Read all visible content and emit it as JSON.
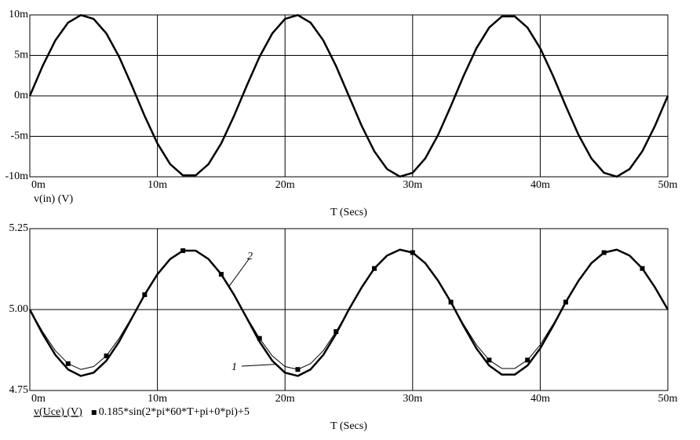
{
  "chart_data": [
    {
      "type": "line",
      "xlabel": "T (Secs)",
      "x": [
        0,
        0.001,
        0.002,
        0.003,
        0.004,
        0.005,
        0.006,
        0.007,
        0.008,
        0.009,
        0.01,
        0.011,
        0.012,
        0.013,
        0.014,
        0.015,
        0.016,
        0.017,
        0.018,
        0.019,
        0.02,
        0.021,
        0.022,
        0.023,
        0.024,
        0.025,
        0.026,
        0.027,
        0.028,
        0.029,
        0.03,
        0.031,
        0.032,
        0.033,
        0.034,
        0.035,
        0.036,
        0.037,
        0.038,
        0.039,
        0.04,
        0.041,
        0.042,
        0.043,
        0.044,
        0.045,
        0.046,
        0.047,
        0.048,
        0.049,
        0.05
      ],
      "series": [
        {
          "name": "v(in) (V)",
          "color": "#000000",
          "width": 2.5,
          "values": [
            0,
            0.00368,
            0.00685,
            0.00905,
            0.00998,
            0.00951,
            0.00771,
            0.00482,
            0.00125,
            -0.00249,
            -0.00588,
            -0.00844,
            -0.00982,
            -0.00982,
            -0.00844,
            -0.00588,
            -0.00249,
            0.00125,
            0.00482,
            0.00771,
            0.00951,
            0.00998,
            0.00905,
            0.00685,
            0.00368,
            0,
            -0.00368,
            -0.00685,
            -0.00905,
            -0.00998,
            -0.00951,
            -0.00771,
            -0.00482,
            -0.00125,
            0.00249,
            0.00588,
            0.00844,
            0.00982,
            0.00982,
            0.00844,
            0.00588,
            0.00249,
            -0.00125,
            -0.00482,
            -0.00771,
            -0.00951,
            -0.00998,
            -0.00905,
            -0.00685,
            -0.00368,
            0
          ]
        }
      ],
      "xlim": [
        0,
        0.05
      ],
      "xticks": [
        {
          "value": 0,
          "label": "0m"
        },
        {
          "value": 0.01,
          "label": "10m"
        },
        {
          "value": 0.02,
          "label": "20m"
        },
        {
          "value": 0.03,
          "label": "30m"
        },
        {
          "value": 0.04,
          "label": "40m"
        },
        {
          "value": 0.05,
          "label": "50m"
        }
      ],
      "ylim": [
        -0.01,
        0.01
      ],
      "yticks": [
        {
          "value": -0.01,
          "label": "-10m"
        },
        {
          "value": -0.005,
          "label": "-5m"
        },
        {
          "value": 0,
          "label": "0m"
        },
        {
          "value": 0.005,
          "label": "5m"
        },
        {
          "value": 0.01,
          "label": "10m"
        }
      ],
      "grid": true
    },
    {
      "type": "line",
      "xlabel": "T (Secs)",
      "x": [
        0,
        0.001,
        0.002,
        0.003,
        0.004,
        0.005,
        0.006,
        0.007,
        0.008,
        0.009,
        0.01,
        0.011,
        0.012,
        0.013,
        0.014,
        0.015,
        0.016,
        0.017,
        0.018,
        0.019,
        0.02,
        0.021,
        0.022,
        0.023,
        0.024,
        0.025,
        0.026,
        0.027,
        0.028,
        0.029,
        0.03,
        0.031,
        0.032,
        0.033,
        0.034,
        0.035,
        0.036,
        0.037,
        0.038,
        0.039,
        0.04,
        0.041,
        0.042,
        0.043,
        0.044,
        0.045,
        0.046,
        0.047,
        0.048,
        0.049,
        0.05
      ],
      "series": [
        {
          "name": "v(Uce) (V)",
          "color": "#000000",
          "width": 2.5,
          "tag": "1",
          "values": [
            5,
            4.925,
            4.86,
            4.815,
            4.795,
            4.805,
            4.842,
            4.901,
            4.974,
            5.046,
            5.109,
            5.156,
            5.182,
            5.182,
            5.156,
            5.109,
            5.046,
            4.974,
            4.901,
            4.842,
            4.805,
            4.795,
            4.815,
            4.86,
            4.925,
            5,
            5.068,
            5.127,
            5.167,
            5.185,
            5.176,
            5.143,
            5.089,
            5.023,
            4.949,
            4.88,
            4.827,
            4.799,
            4.799,
            4.827,
            4.88,
            4.949,
            5.023,
            5.089,
            5.143,
            5.176,
            5.185,
            5.167,
            5.127,
            5.068,
            5
          ]
        },
        {
          "name": "0.185*sin(2*pi*60*T+pi+0*pi)+5",
          "color": "#000000",
          "width": 1,
          "tag": "2",
          "markers": true,
          "values": [
            5,
            4.932,
            4.873,
            4.833,
            4.815,
            4.824,
            4.857,
            4.911,
            4.977,
            5.046,
            5.109,
            5.156,
            5.182,
            5.182,
            5.156,
            5.109,
            5.046,
            4.977,
            4.911,
            4.857,
            4.824,
            4.815,
            4.833,
            4.873,
            4.932,
            5,
            5.068,
            5.127,
            5.167,
            5.185,
            5.176,
            5.143,
            5.089,
            5.023,
            4.954,
            4.891,
            4.844,
            4.818,
            4.818,
            4.844,
            4.891,
            4.954,
            5.023,
            5.089,
            5.143,
            5.176,
            5.185,
            5.167,
            5.127,
            5.068,
            5
          ]
        }
      ],
      "xlim": [
        0,
        0.05
      ],
      "xticks": [
        {
          "value": 0,
          "label": "0m"
        },
        {
          "value": 0.01,
          "label": "10m"
        },
        {
          "value": 0.02,
          "label": "20m"
        },
        {
          "value": 0.03,
          "label": "30m"
        },
        {
          "value": 0.04,
          "label": "40m"
        },
        {
          "value": 0.05,
          "label": "50m"
        }
      ],
      "ylim": [
        4.75,
        5.25
      ],
      "yticks": [
        4.75,
        {
          "value": 5,
          "label": "5.00"
        },
        5.25
      ],
      "grid": true
    }
  ]
}
